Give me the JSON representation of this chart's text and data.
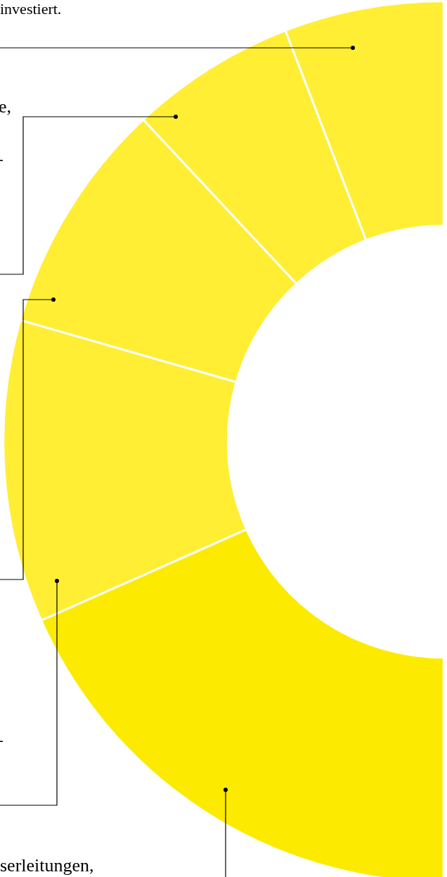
{
  "chart_data": {
    "type": "donut",
    "categories": [
      null,
      null,
      null,
      null,
      null
    ],
    "values": [
      36.7,
      22.2,
      17.2,
      12.2,
      11.7
    ],
    "colors": [
      "#fcea00",
      "#ffee33",
      "#ffee33",
      "#ffee33",
      "#ffee33"
    ],
    "legend": false,
    "annotations": [
      "investiert.",
      "e,",
      "-",
      "-",
      "serleitungen,"
    ]
  }
}
